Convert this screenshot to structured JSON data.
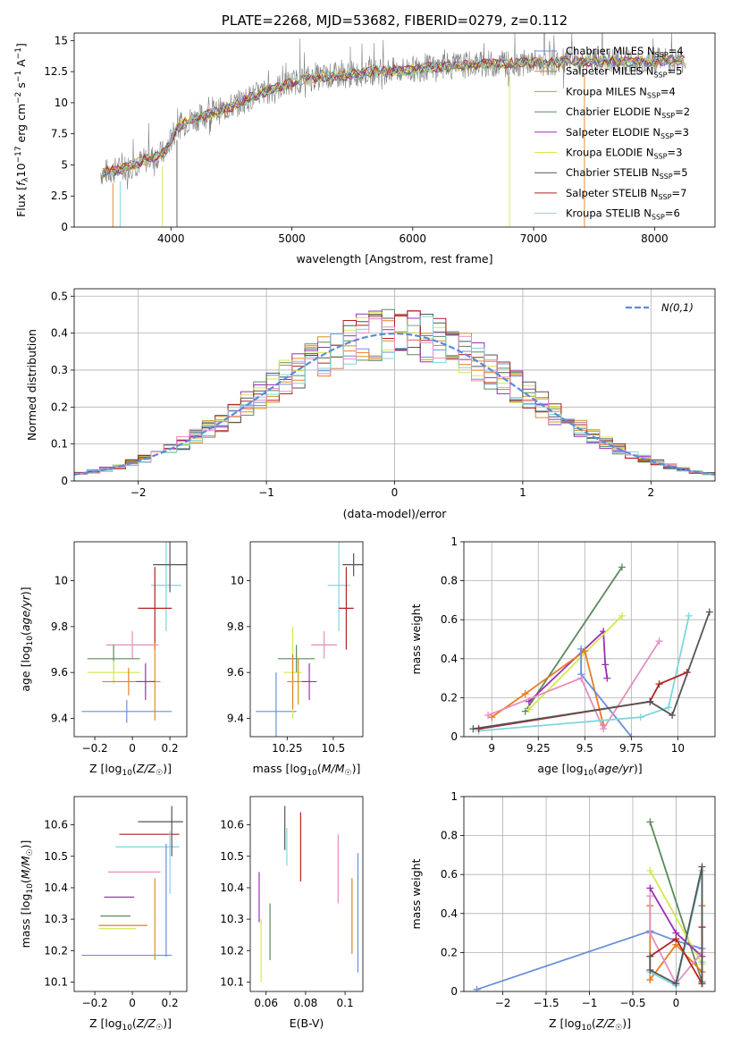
{
  "colors": {
    "Chabrier MILES": "#6a8fd8",
    "Salpeter MILES": "#e67e22",
    "Kroupa MILES": "#d4941f",
    "Chabrier ELODIE": "#5b8a5b",
    "Salpeter ELODIE": "#9b2fb5",
    "Kroupa ELODIE": "#d4e84f",
    "Chabrier STELIB": "#555555",
    "Salpeter STELIB": "#b22222",
    "Kroupa STELIB": "#7fd6dc",
    "pink": "#e38fc0",
    "normal": "#5b8bd8",
    "spectrum": "#808080",
    "grid": "#b0b0b0"
  },
  "chart_data": [
    {
      "type": "line",
      "title": "PLATE=2268, MJD=53682, FIBERID=0279, z=0.112",
      "xlabel": "wavelength [Angstrom, rest frame]",
      "ylabel": "Flux [f_λ10⁻¹⁷ erg cm⁻² s⁻¹ A⁻¹]",
      "xlim": [
        3200,
        8500
      ],
      "ylim": [
        0,
        15.6
      ],
      "xticks": [
        4000,
        5000,
        6000,
        7000,
        8000
      ],
      "yticks": [
        0.0,
        2.5,
        5.0,
        7.5,
        10.0,
        12.5,
        15.0
      ],
      "legend_position": "right",
      "legend": [
        {
          "name": "Chabrier MILES",
          "nssp": "4"
        },
        {
          "name": "Salpeter MILES",
          "nssp": "5"
        },
        {
          "name": "Kroupa MILES",
          "nssp": "4"
        },
        {
          "name": "Chabrier ELODIE",
          "nssp": "2"
        },
        {
          "name": "Salpeter ELODIE",
          "nssp": "3"
        },
        {
          "name": "Kroupa ELODIE",
          "nssp": "3"
        },
        {
          "name": "Chabrier STELIB",
          "nssp": "5"
        },
        {
          "name": "Salpeter STELIB",
          "nssp": "7"
        },
        {
          "name": "Kroupa STELIB",
          "nssp": "6"
        }
      ],
      "legend_suffix": "N",
      "legend_sub": "SSP",
      "continuum": {
        "wavelength": [
          3400,
          3600,
          3800,
          3950,
          4050,
          4150,
          4300,
          4500,
          4700,
          4900,
          5100,
          5300,
          5500,
          5700,
          5900,
          6100,
          6300,
          6500,
          6700,
          6900,
          7100,
          7300,
          7500,
          7700,
          7900,
          8100,
          8250
        ],
        "flux": [
          4.3,
          4.7,
          5.4,
          6.0,
          8.0,
          8.6,
          9.0,
          9.7,
          10.6,
          11.3,
          11.9,
          12.1,
          12.3,
          12.5,
          12.6,
          12.8,
          12.9,
          13.1,
          13.1,
          13.2,
          13.2,
          13.3,
          13.3,
          13.3,
          13.3,
          13.4,
          13.4
        ]
      }
    },
    {
      "type": "histogram",
      "xlabel": "(data-model)/error",
      "ylabel": "Normed distribution",
      "xlim": [
        -2.5,
        2.5
      ],
      "ylim": [
        0,
        0.52
      ],
      "xticks": [
        -2,
        -1,
        0,
        1,
        2
      ],
      "yticks": [
        0.0,
        0.1,
        0.2,
        0.3,
        0.4,
        0.5
      ],
      "grid": true,
      "legend_position": "top-right",
      "normal_label": "N(0,1)",
      "bin_width": 0.1,
      "bins_from": -2.5
    },
    {
      "type": "scatter",
      "xlabel": "Z [log₁₀(Z/Z☉)]",
      "ylabel": "age  [log₁₀(age/yr)]",
      "xlim": [
        -0.31,
        0.29
      ],
      "ylim": [
        9.32,
        10.17
      ],
      "xticks": [
        -0.2,
        0.0,
        0.2
      ],
      "yticks": [
        9.4,
        9.6,
        9.8,
        10.0
      ],
      "points": [
        {
          "series": "Chabrier MILES",
          "x": -0.03,
          "y": 9.43,
          "xerr": 0.24,
          "yerr": 0.05
        },
        {
          "series": "Kroupa STELIB",
          "x": 0.18,
          "y": 9.98,
          "xerr": 0.08,
          "yerr": 0.2
        },
        {
          "series": "Chabrier STELIB",
          "x": 0.2,
          "y": 10.07,
          "xerr": 0.09,
          "yerr": 0.12
        },
        {
          "series": "Salpeter STELIB",
          "x": 0.12,
          "y": 9.88,
          "xerr": 0.09,
          "yerr": 0.18
        },
        {
          "series": "pink",
          "x": 0.0,
          "y": 9.72,
          "xerr": 0.14,
          "yerr": 0.06
        },
        {
          "series": "Chabrier ELODIE",
          "x": -0.1,
          "y": 9.66,
          "xerr": 0.14,
          "yerr": 0.06
        },
        {
          "series": "Kroupa ELODIE",
          "x": -0.1,
          "y": 9.6,
          "xerr": 0.14,
          "yerr": 0.05
        },
        {
          "series": "Salpeter MILES",
          "x": -0.02,
          "y": 9.56,
          "xerr": 0.14,
          "yerr": 0.06
        },
        {
          "series": "Kroupa MILES",
          "x": 0.12,
          "y": 9.56,
          "xerr": 0.03,
          "yerr": 0.17
        },
        {
          "series": "Salpeter ELODIE",
          "x": 0.07,
          "y": 9.56,
          "xerr": 0.05,
          "yerr": 0.08
        }
      ]
    },
    {
      "type": "scatter",
      "xlabel": "mass [log₁₀(M/M☉)]",
      "ylabel": "",
      "xlim": [
        10.05,
        10.66
      ],
      "ylim": [
        9.32,
        10.17
      ],
      "xticks": [
        10.25,
        10.5
      ],
      "yticks": [
        9.4,
        9.6,
        9.8,
        10.0
      ],
      "points": [
        {
          "series": "Chabrier MILES",
          "x": 10.19,
          "y": 9.43,
          "xerr": 0.11,
          "yerr": 0.17
        },
        {
          "series": "Kroupa STELIB",
          "x": 10.53,
          "y": 9.98,
          "xerr": 0.06,
          "yerr": 0.2
        },
        {
          "series": "Chabrier STELIB",
          "x": 10.61,
          "y": 10.07,
          "xerr": 0.06,
          "yerr": 0.05
        },
        {
          "series": "Salpeter STELIB",
          "x": 10.57,
          "y": 9.88,
          "xerr": 0.04,
          "yerr": 0.18
        },
        {
          "series": "pink",
          "x": 10.45,
          "y": 9.72,
          "xerr": 0.07,
          "yerr": 0.06
        },
        {
          "series": "Chabrier ELODIE",
          "x": 10.3,
          "y": 9.66,
          "xerr": 0.1,
          "yerr": 0.06
        },
        {
          "series": "Kroupa ELODIE",
          "x": 10.28,
          "y": 9.6,
          "xerr": 0.05,
          "yerr": 0.2
        },
        {
          "series": "Salpeter MILES",
          "x": 10.28,
          "y": 9.56,
          "xerr": 0.03,
          "yerr": 0.12
        },
        {
          "series": "Kroupa MILES",
          "x": 10.31,
          "y": 9.56,
          "xerr": 0.05,
          "yerr": 0.1
        },
        {
          "series": "Salpeter ELODIE",
          "x": 10.37,
          "y": 9.56,
          "xerr": 0.04,
          "yerr": 0.08
        }
      ]
    },
    {
      "type": "line",
      "xlabel": "age  [log₁₀(age/yr)]",
      "ylabel": "mass weight",
      "xlim": [
        8.85,
        10.2
      ],
      "ylim": [
        0,
        1.0
      ],
      "xticks": [
        9.0,
        9.25,
        9.5,
        9.75,
        10.0
      ],
      "yticks": [
        0.0,
        0.2,
        0.4,
        0.6,
        0.8,
        1.0
      ],
      "grid": true,
      "series": [
        {
          "name": "Chabrier ELODIE",
          "x": [
            9.18,
            9.7
          ],
          "y": [
            0.13,
            0.87
          ]
        },
        {
          "name": "Salpeter ELODIE",
          "x": [
            9.2,
            9.6,
            9.61,
            9.62
          ],
          "y": [
            0.18,
            0.54,
            0.37,
            0.3
          ]
        },
        {
          "name": "Kroupa ELODIE",
          "x": [
            9.2,
            9.7
          ],
          "y": [
            0.14,
            0.62
          ]
        },
        {
          "name": "Salpeter MILES",
          "x": [
            9.0,
            9.18,
            9.5,
            9.6
          ],
          "y": [
            0.1,
            0.22,
            0.44,
            0.06
          ]
        },
        {
          "name": "Chabrier MILES",
          "x": [
            9.48,
            9.48,
            9.75
          ],
          "y": [
            0.45,
            0.32,
            0.0
          ]
        },
        {
          "name": "pink",
          "x": [
            8.98,
            9.48,
            9.6,
            9.9
          ],
          "y": [
            0.11,
            0.3,
            0.04,
            0.49
          ]
        },
        {
          "name": "Kroupa STELIB",
          "x": [
            8.93,
            9.8,
            9.95,
            10.06
          ],
          "y": [
            0.03,
            0.1,
            0.15,
            0.62
          ]
        },
        {
          "name": "Salpeter STELIB",
          "x": [
            8.93,
            9.85,
            9.9,
            10.05
          ],
          "y": [
            0.04,
            0.18,
            0.27,
            0.33
          ]
        },
        {
          "name": "Chabrier STELIB",
          "x": [
            8.9,
            9.85,
            9.97,
            10.17
          ],
          "y": [
            0.04,
            0.18,
            0.11,
            0.64
          ]
        }
      ]
    },
    {
      "type": "scatter",
      "xlabel": "Z [log₁₀(Z/Z☉)]",
      "ylabel": "mass [log₁₀(M/M☉)]",
      "xlim": [
        -0.31,
        0.29
      ],
      "ylim": [
        10.07,
        10.69
      ],
      "xticks": [
        -0.2,
        0.0,
        0.2
      ],
      "yticks": [
        10.1,
        10.2,
        10.3,
        10.4,
        10.5,
        10.6
      ],
      "points": [
        {
          "series": "Chabrier MILES",
          "x": -0.03,
          "y": 10.185,
          "xerr": 0.24,
          "yerr": 0.0
        },
        {
          "series": "Chabrier STELIB",
          "x": 0.15,
          "y": 10.61,
          "xerr": 0.12,
          "yerr": 0.0
        },
        {
          "series": "Kroupa STELIB",
          "x": 0.08,
          "y": 10.53,
          "xerr": 0.17,
          "yerr": 0.0
        },
        {
          "series": "Salpeter STELIB",
          "x": 0.09,
          "y": 10.57,
          "xerr": 0.16,
          "yerr": 0.0
        },
        {
          "series": "pink",
          "x": 0.01,
          "y": 10.45,
          "xerr": 0.14,
          "yerr": 0.0
        },
        {
          "series": "Salpeter ELODIE",
          "x": -0.07,
          "y": 10.37,
          "xerr": 0.08,
          "yerr": 0.0
        },
        {
          "series": "Chabrier ELODIE",
          "x": -0.09,
          "y": 10.31,
          "xerr": 0.08,
          "yerr": 0.0
        },
        {
          "series": "Salpeter MILES",
          "x": -0.05,
          "y": 10.28,
          "xerr": 0.13,
          "yerr": 0.0
        },
        {
          "series": "Kroupa ELODIE",
          "x": -0.08,
          "y": 10.27,
          "xerr": 0.1,
          "yerr": 0.0
        },
        {
          "series": "Kroupa MILES",
          "x": 0.12,
          "y": 10.3,
          "xerr": 0.0,
          "yerr": 0.13
        },
        {
          "series": "Chabrier MILES",
          "x": 0.18,
          "y": 10.36,
          "xerr": 0.0,
          "yerr": 0.18
        },
        {
          "series": "Kroupa STELIB",
          "x": 0.2,
          "y": 10.48,
          "xerr": 0.0,
          "yerr": 0.1
        },
        {
          "series": "Chabrier STELIB",
          "x": 0.21,
          "y": 10.58,
          "xerr": 0.0,
          "yerr": 0.08
        }
      ]
    },
    {
      "type": "scatter",
      "xlabel": "E(B-V)",
      "ylabel": "",
      "xlim": [
        0.052,
        0.109
      ],
      "ylim": [
        10.07,
        10.69
      ],
      "xticks": [
        0.06,
        0.08,
        0.1
      ],
      "yticks": [
        10.1,
        10.2,
        10.3,
        10.4,
        10.5,
        10.6
      ],
      "points": [
        {
          "series": "Salpeter ELODIE",
          "x": 0.0565,
          "y": 10.37,
          "xerr": 0.0,
          "yerr": 0.08
        },
        {
          "series": "Kroupa ELODIE",
          "x": 0.0575,
          "y": 10.2,
          "xerr": 0.0,
          "yerr": 0.1
        },
        {
          "series": "Chabrier ELODIE",
          "x": 0.062,
          "y": 10.26,
          "xerr": 0.0,
          "yerr": 0.09
        },
        {
          "series": "Chabrier STELIB",
          "x": 0.0695,
          "y": 10.59,
          "xerr": 0.0,
          "yerr": 0.07
        },
        {
          "series": "Kroupa STELIB",
          "x": 0.0705,
          "y": 10.53,
          "xerr": 0.0,
          "yerr": 0.06
        },
        {
          "series": "Salpeter STELIB",
          "x": 0.0775,
          "y": 10.53,
          "xerr": 0.0,
          "yerr": 0.11
        },
        {
          "series": "pink",
          "x": 0.0965,
          "y": 10.46,
          "xerr": 0.0,
          "yerr": 0.11
        },
        {
          "series": "Salpeter MILES",
          "x": 0.1035,
          "y": 10.31,
          "xerr": 0.0,
          "yerr": 0.12
        },
        {
          "series": "Chabrier MILES",
          "x": 0.1065,
          "y": 10.32,
          "xerr": 0.0,
          "yerr": 0.19
        }
      ]
    },
    {
      "type": "line",
      "xlabel": "Z [log₁₀(Z/Z☉)]",
      "ylabel": "mass weight",
      "xlim": [
        -2.45,
        0.45
      ],
      "ylim": [
        0,
        1.0
      ],
      "xticks": [
        -2.0,
        -1.5,
        -1.0,
        -0.5,
        0.0
      ],
      "yticks": [
        0.0,
        0.2,
        0.4,
        0.6,
        0.8,
        1.0
      ],
      "grid": true,
      "series": [
        {
          "name": "Chabrier MILES",
          "x": [
            -2.3,
            -0.3,
            0.0,
            0.3
          ],
          "y": [
            0.01,
            0.31,
            0.26,
            0.22
          ]
        },
        {
          "name": "Chabrier ELODIE",
          "x": [
            -0.3,
            0.3
          ],
          "y": [
            0.87,
            0.05
          ]
        },
        {
          "name": "Kroupa ELODIE",
          "x": [
            -0.3,
            0.3
          ],
          "y": [
            0.62,
            0.14
          ]
        },
        {
          "name": "Salpeter ELODIE",
          "x": [
            -0.3,
            0.0,
            0.3
          ],
          "y": [
            0.53,
            0.3,
            0.18
          ]
        },
        {
          "name": "Salpeter MILES",
          "x": [
            -0.3,
            -0.3,
            0.0,
            0.3,
            0.3
          ],
          "y": [
            0.44,
            0.06,
            0.24,
            0.1,
            0.44
          ]
        },
        {
          "name": "pink",
          "x": [
            -0.3,
            -0.3,
            0.0,
            0.3
          ],
          "y": [
            0.49,
            0.3,
            0.04,
            0.2
          ]
        },
        {
          "name": "Kroupa STELIB",
          "x": [
            -0.3,
            0.0,
            0.3,
            0.3
          ],
          "y": [
            0.1,
            0.03,
            0.62,
            0.15
          ]
        },
        {
          "name": "Salpeter STELIB",
          "x": [
            -0.3,
            0.0,
            0.3,
            0.3
          ],
          "y": [
            0.18,
            0.27,
            0.04,
            0.33
          ]
        },
        {
          "name": "Chabrier STELIB",
          "x": [
            -0.3,
            -0.3,
            0.0,
            0.3,
            0.3
          ],
          "y": [
            0.18,
            0.11,
            0.04,
            0.64,
            0.04
          ]
        }
      ]
    }
  ]
}
